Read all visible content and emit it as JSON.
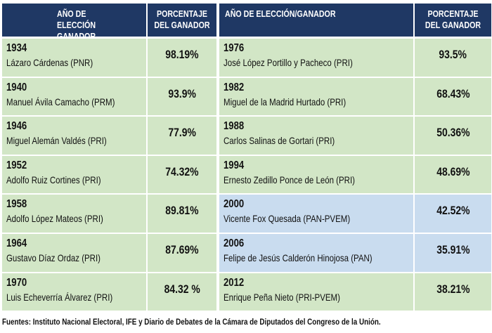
{
  "tables": [
    {
      "headers": [
        "AÑO DE ELECCIÓN GANADOR",
        "PORCENTAJE DEL GANADOR"
      ],
      "rows": [
        {
          "year": "1934",
          "name": "Lázaro Cárdenas (PNR)",
          "percent": "98.19%",
          "color": "#d2e6c6"
        },
        {
          "year": "1940",
          "name": "Manuel Ávila Camacho (PRM)",
          "percent": "93.9%",
          "color": "#d2e6c6"
        },
        {
          "year": "1946",
          "name": "Miguel Alemán Valdés (PRI)",
          "percent": "77.9%",
          "color": "#d2e6c6"
        },
        {
          "year": "1952",
          "name": "Adolfo Ruiz Cortines (PRI)",
          "percent": "74.32%",
          "color": "#d2e6c6"
        },
        {
          "year": "1958",
          "name": "Adolfo López Mateos (PRI)",
          "percent": "89.81%",
          "color": "#d2e6c6"
        },
        {
          "year": "1964",
          "name": "Gustavo Díaz Ordaz (PRI)",
          "percent": "87.69%",
          "color": "#d2e6c6"
        },
        {
          "year": "1970",
          "name": "Luis Echeverría Álvarez (PRI)",
          "percent": "84.32 %",
          "color": "#d2e6c6"
        }
      ]
    },
    {
      "headers": [
        "AÑO DE ELECCIÓN/GANADOR",
        "PORCENTAJE DEL GANADOR"
      ],
      "rows": [
        {
          "year": "1976",
          "name": "José López Portillo y Pacheco (PRI)",
          "percent": "93.5%",
          "color": "#d2e6c6"
        },
        {
          "year": "1982",
          "name": "Miguel de la Madrid Hurtado (PRI)",
          "percent": "68.43%",
          "color": "#d2e6c6"
        },
        {
          "year": "1988",
          "name": "Carlos Salinas de Gortari (PRI)",
          "percent": "50.36%",
          "color": "#d2e6c6"
        },
        {
          "year": "1994",
          "name": "Ernesto Zedillo Ponce de León (PRI)",
          "percent": "48.69%",
          "color": "#d2e6c6"
        },
        {
          "year": "2000",
          "name": "Vicente Fox Quesada (PAN-PVEM)",
          "percent": "42.52%",
          "color": "#c9dcef"
        },
        {
          "year": "2006",
          "name": "Felipe de Jesús Calderón Hinojosa (PAN)",
          "percent": "35.91%",
          "color": "#c9dcef"
        },
        {
          "year": "2012",
          "name": "Enrique Peña Nieto (PRI-PVEM)",
          "percent": "38.21%",
          "color": "#d2e6c6"
        }
      ]
    }
  ],
  "footer": "Fuentes: Instituto Nacional Electoral, IFE y Diario de Debates de la Cámara de Diputados del Congreso de la Unión."
}
